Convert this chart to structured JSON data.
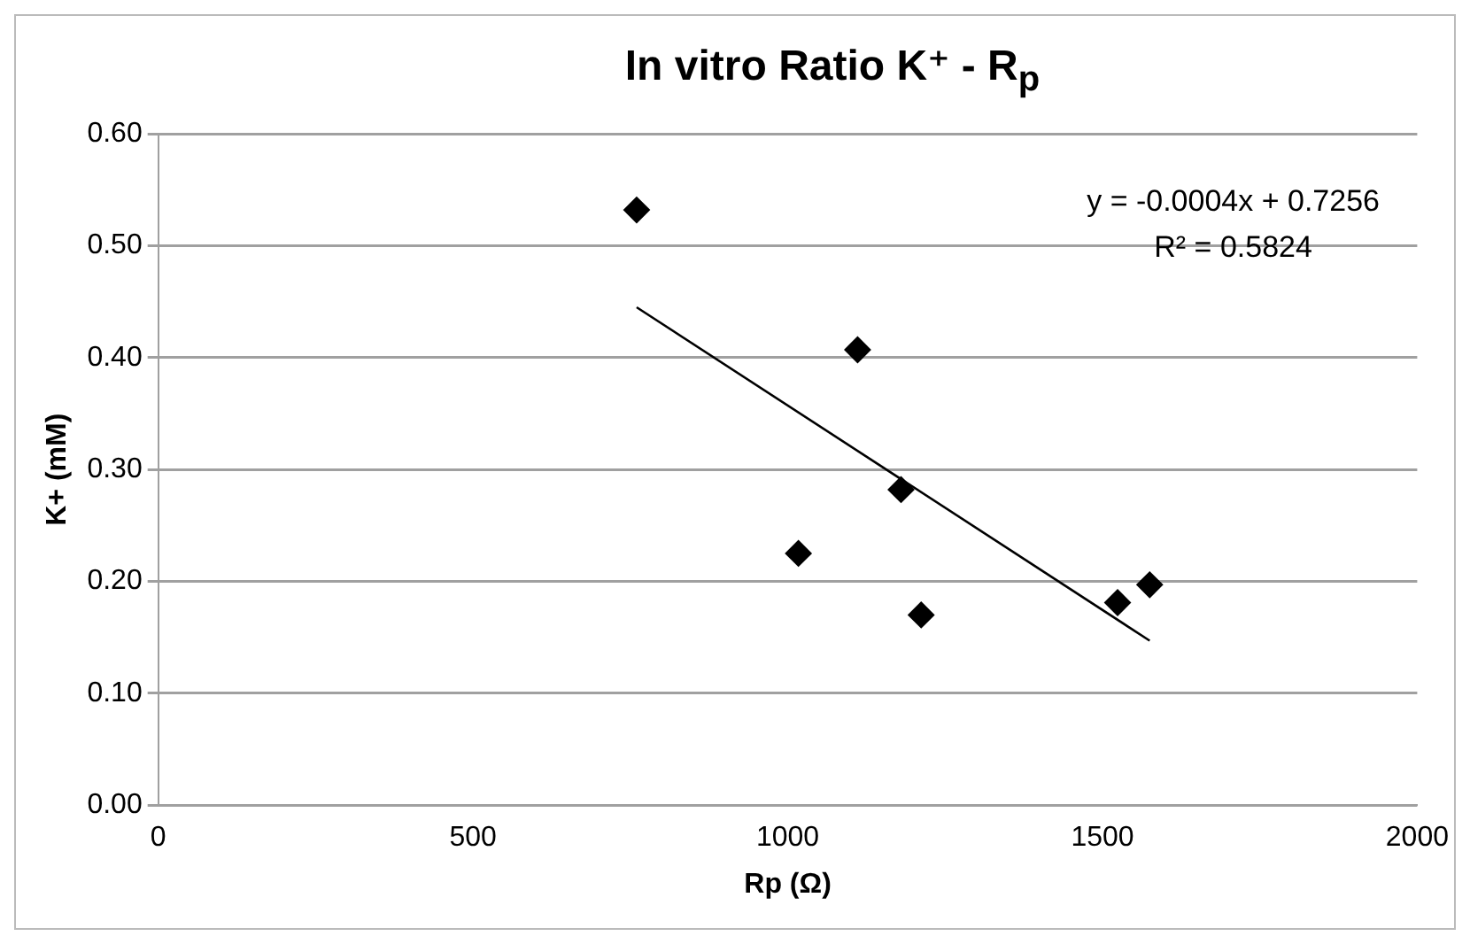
{
  "chart_data": {
    "type": "scatter",
    "title": "In vitro Ratio K⁺ - R$_{p}$",
    "xlabel": "Rp (Ω)",
    "ylabel": "K+ (mM)",
    "series": [
      {
        "color": "#000000",
        "marker": "diamond",
        "x": [
          760,
          1111,
          1180,
          1017,
          1212,
          1524,
          1575
        ],
        "values": [
          0.532,
          0.407,
          0.282,
          0.225,
          0.17,
          0.181,
          0.197
        ]
      },
      {
        "type": "line",
        "color": "#000000",
        "marker": "none",
        "line_style": "solid",
        "x": [
          760,
          1575
        ],
        "values": [
          0.445,
          0.147
        ]
      }
    ],
    "xlim": [
      0,
      2000
    ],
    "xticks": [
      0,
      500,
      1000,
      1500,
      2000
    ],
    "ylim": [
      0,
      0.6
    ],
    "yticks": [
      {
        "value": 0,
        "label": "0.00"
      },
      {
        "value": 0.1,
        "label": "0.10"
      },
      {
        "value": 0.2,
        "label": "0.20"
      },
      {
        "value": 0.3,
        "label": "0.30"
      },
      {
        "value": 0.4,
        "label": "0.40"
      },
      {
        "value": 0.5,
        "label": "0.50"
      },
      {
        "value": 0.6,
        "label": "0.60"
      }
    ],
    "grid": "y",
    "legend": false,
    "annotations": [
      "y = -0.0004x + 0.7256",
      "R² = 0.5824"
    ]
  }
}
